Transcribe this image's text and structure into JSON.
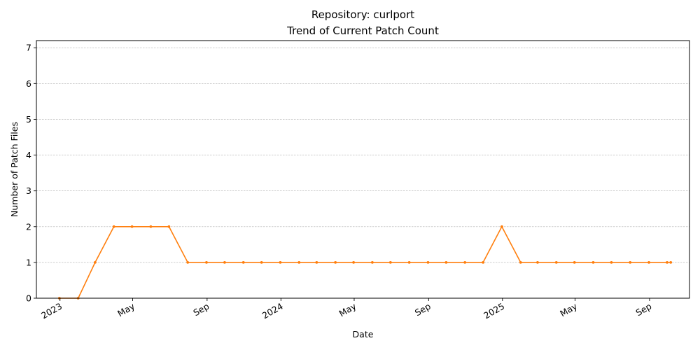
{
  "chart_data": {
    "type": "line",
    "title": "Repository: curlport",
    "subtitle": "Trend of Current Patch Count",
    "xlabel": "Date",
    "ylabel": "Number of Patch Files",
    "ylim": [
      0,
      7.2
    ],
    "xlim": [
      "2022-11-23",
      "2025-11-06"
    ],
    "yticks": [
      0,
      1,
      2,
      3,
      4,
      5,
      6,
      7
    ],
    "xticks": [
      {
        "date": "2023-01-01",
        "label": "2023"
      },
      {
        "date": "2023-05-01",
        "label": "May"
      },
      {
        "date": "2023-09-01",
        "label": "Sep"
      },
      {
        "date": "2024-01-01",
        "label": "2024"
      },
      {
        "date": "2024-05-01",
        "label": "May"
      },
      {
        "date": "2024-09-01",
        "label": "Sep"
      },
      {
        "date": "2025-01-01",
        "label": "2025"
      },
      {
        "date": "2025-05-01",
        "label": "May"
      },
      {
        "date": "2025-09-01",
        "label": "Sep"
      }
    ],
    "grid": "y",
    "series": [
      {
        "color": "#ff7f0e",
        "x": [
          "2022-12-31",
          "2023-01-31",
          "2023-02-28",
          "2023-03-31",
          "2023-04-30",
          "2023-05-31",
          "2023-06-30",
          "2023-07-31",
          "2023-08-31",
          "2023-09-30",
          "2023-10-31",
          "2023-11-30",
          "2023-12-31",
          "2024-01-31",
          "2024-02-29",
          "2024-03-31",
          "2024-04-30",
          "2024-05-31",
          "2024-06-30",
          "2024-07-31",
          "2024-08-31",
          "2024-09-30",
          "2024-10-31",
          "2024-11-30",
          "2024-12-31",
          "2025-01-31",
          "2025-02-28",
          "2025-03-31",
          "2025-04-30",
          "2025-05-31",
          "2025-06-30",
          "2025-07-31",
          "2025-08-31",
          "2025-09-30",
          "2025-10-06"
        ],
        "values": [
          0,
          0,
          1,
          2,
          2,
          2,
          2,
          1,
          1,
          1,
          1,
          1,
          1,
          1,
          1,
          1,
          1,
          1,
          1,
          1,
          1,
          1,
          1,
          1,
          2,
          1,
          1,
          1,
          1,
          1,
          1,
          1,
          1,
          1,
          1
        ]
      }
    ]
  }
}
